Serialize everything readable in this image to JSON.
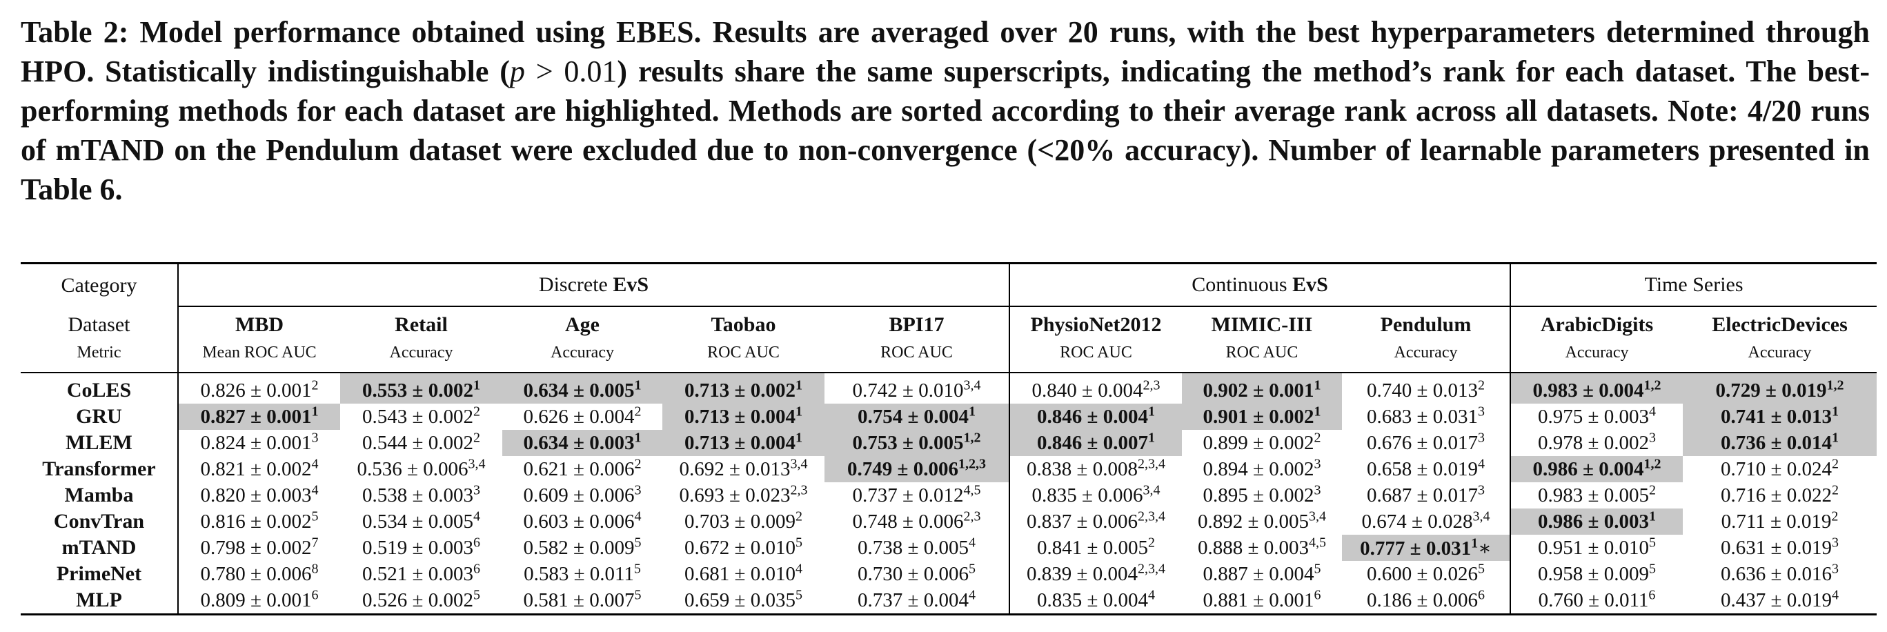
{
  "caption": {
    "part1": "Table 2: Model performance obtained using EBES. Results are averaged over 20 runs, with the best hyperparameters determined through HPO. Statistically indistinguishable (",
    "p_symbol": "p",
    "gt": " > ",
    "p_value": "0.01",
    "part2": ") results share the same superscripts, indicating the method’s rank for each dataset. The best-performing methods for each dataset are highlighted. Methods are sorted according to their average rank across all datasets. Note: 4/20 runs of mTAND on the Pendulum dataset were excluded due to non-convergence (<20% accuracy). Number of learnable parameters presented in Table 6."
  },
  "header": {
    "category_label": "Category",
    "dataset_label": "Dataset",
    "metric_label": "Metric",
    "groups": [
      {
        "prefix": "Discrete ",
        "bold": "EvS",
        "span": 5
      },
      {
        "prefix": "Continuous ",
        "bold": "EvS",
        "span": 3
      },
      {
        "prefix": "Time Series",
        "bold": "",
        "span": 2
      }
    ],
    "datasets": [
      "MBD",
      "Retail",
      "Age",
      "Taobao",
      "BPI17",
      "PhysioNet2012",
      "MIMIC-III",
      "Pendulum",
      "ArabicDigits",
      "ElectricDevices"
    ],
    "metrics": [
      "Mean ROC AUC",
      "Accuracy",
      "Accuracy",
      "ROC AUC",
      "ROC AUC",
      "ROC AUC",
      "ROC AUC",
      "Accuracy",
      "Accuracy",
      "Accuracy"
    ]
  },
  "rows": [
    {
      "method": "CoLES",
      "cells": [
        {
          "v": "0.826 ± 0.001",
          "s": "2",
          "b": false,
          "h": false
        },
        {
          "v": "0.553 ± 0.002",
          "s": "1",
          "b": true,
          "h": true
        },
        {
          "v": "0.634 ± 0.005",
          "s": "1",
          "b": true,
          "h": true
        },
        {
          "v": "0.713 ± 0.002",
          "s": "1",
          "b": true,
          "h": true
        },
        {
          "v": "0.742 ± 0.010",
          "s": "3,4",
          "b": false,
          "h": false
        },
        {
          "v": "0.840 ± 0.004",
          "s": "2,3",
          "b": false,
          "h": false
        },
        {
          "v": "0.902 ± 0.001",
          "s": "1",
          "b": true,
          "h": true
        },
        {
          "v": "0.740 ± 0.013",
          "s": "2",
          "b": false,
          "h": false
        },
        {
          "v": "0.983 ± 0.004",
          "s": "1,2",
          "b": true,
          "h": true
        },
        {
          "v": "0.729 ± 0.019",
          "s": "1,2",
          "b": true,
          "h": true
        }
      ]
    },
    {
      "method": "GRU",
      "cells": [
        {
          "v": "0.827 ± 0.001",
          "s": "1",
          "b": true,
          "h": true
        },
        {
          "v": "0.543 ± 0.002",
          "s": "2",
          "b": false,
          "h": false
        },
        {
          "v": "0.626 ± 0.004",
          "s": "2",
          "b": false,
          "h": false
        },
        {
          "v": "0.713 ± 0.004",
          "s": "1",
          "b": true,
          "h": true
        },
        {
          "v": "0.754 ± 0.004",
          "s": "1",
          "b": true,
          "h": true
        },
        {
          "v": "0.846 ± 0.004",
          "s": "1",
          "b": true,
          "h": true
        },
        {
          "v": "0.901 ± 0.002",
          "s": "1",
          "b": true,
          "h": true
        },
        {
          "v": "0.683 ± 0.031",
          "s": "3",
          "b": false,
          "h": false
        },
        {
          "v": "0.975 ± 0.003",
          "s": "4",
          "b": false,
          "h": false
        },
        {
          "v": "0.741 ± 0.013",
          "s": "1",
          "b": true,
          "h": true
        }
      ]
    },
    {
      "method": "MLEM",
      "cells": [
        {
          "v": "0.824 ± 0.001",
          "s": "3",
          "b": false,
          "h": false
        },
        {
          "v": "0.544 ± 0.002",
          "s": "2",
          "b": false,
          "h": false
        },
        {
          "v": "0.634 ± 0.003",
          "s": "1",
          "b": true,
          "h": true
        },
        {
          "v": "0.713 ± 0.004",
          "s": "1",
          "b": true,
          "h": true
        },
        {
          "v": "0.753 ± 0.005",
          "s": "1,2",
          "b": true,
          "h": true
        },
        {
          "v": "0.846 ± 0.007",
          "s": "1",
          "b": true,
          "h": true
        },
        {
          "v": "0.899 ± 0.002",
          "s": "2",
          "b": false,
          "h": false
        },
        {
          "v": "0.676 ± 0.017",
          "s": "3",
          "b": false,
          "h": false
        },
        {
          "v": "0.978 ± 0.002",
          "s": "3",
          "b": false,
          "h": false
        },
        {
          "v": "0.736 ± 0.014",
          "s": "1",
          "b": true,
          "h": true
        }
      ]
    },
    {
      "method": "Transformer",
      "cells": [
        {
          "v": "0.821 ± 0.002",
          "s": "4",
          "b": false,
          "h": false
        },
        {
          "v": "0.536 ± 0.006",
          "s": "3,4",
          "b": false,
          "h": false
        },
        {
          "v": "0.621 ± 0.006",
          "s": "2",
          "b": false,
          "h": false
        },
        {
          "v": "0.692 ± 0.013",
          "s": "3,4",
          "b": false,
          "h": false
        },
        {
          "v": "0.749 ± 0.006",
          "s": "1,2,3",
          "b": true,
          "h": true
        },
        {
          "v": "0.838 ± 0.008",
          "s": "2,3,4",
          "b": false,
          "h": false
        },
        {
          "v": "0.894 ± 0.002",
          "s": "3",
          "b": false,
          "h": false
        },
        {
          "v": "0.658 ± 0.019",
          "s": "4",
          "b": false,
          "h": false
        },
        {
          "v": "0.986 ± 0.004",
          "s": "1,2",
          "b": true,
          "h": true
        },
        {
          "v": "0.710 ± 0.024",
          "s": "2",
          "b": false,
          "h": false
        }
      ]
    },
    {
      "method": "Mamba",
      "cells": [
        {
          "v": "0.820 ± 0.003",
          "s": "4",
          "b": false,
          "h": false
        },
        {
          "v": "0.538 ± 0.003",
          "s": "3",
          "b": false,
          "h": false
        },
        {
          "v": "0.609 ± 0.006",
          "s": "3",
          "b": false,
          "h": false
        },
        {
          "v": "0.693 ± 0.023",
          "s": "2,3",
          "b": false,
          "h": false
        },
        {
          "v": "0.737 ± 0.012",
          "s": "4,5",
          "b": false,
          "h": false
        },
        {
          "v": "0.835 ± 0.006",
          "s": "3,4",
          "b": false,
          "h": false
        },
        {
          "v": "0.895 ± 0.002",
          "s": "3",
          "b": false,
          "h": false
        },
        {
          "v": "0.687 ± 0.017",
          "s": "3",
          "b": false,
          "h": false
        },
        {
          "v": "0.983 ± 0.005",
          "s": "2",
          "b": false,
          "h": false
        },
        {
          "v": "0.716 ± 0.022",
          "s": "2",
          "b": false,
          "h": false
        }
      ]
    },
    {
      "method": "ConvTran",
      "cells": [
        {
          "v": "0.816 ± 0.002",
          "s": "5",
          "b": false,
          "h": false
        },
        {
          "v": "0.534 ± 0.005",
          "s": "4",
          "b": false,
          "h": false
        },
        {
          "v": "0.603 ± 0.006",
          "s": "4",
          "b": false,
          "h": false
        },
        {
          "v": "0.703 ± 0.009",
          "s": "2",
          "b": false,
          "h": false
        },
        {
          "v": "0.748 ± 0.006",
          "s": "2,3",
          "b": false,
          "h": false
        },
        {
          "v": "0.837 ± 0.006",
          "s": "2,3,4",
          "b": false,
          "h": false
        },
        {
          "v": "0.892 ± 0.005",
          "s": "3,4",
          "b": false,
          "h": false
        },
        {
          "v": "0.674 ± 0.028",
          "s": "3,4",
          "b": false,
          "h": false
        },
        {
          "v": "0.986 ± 0.003",
          "s": "1",
          "b": true,
          "h": true
        },
        {
          "v": "0.711 ± 0.019",
          "s": "2",
          "b": false,
          "h": false
        }
      ]
    },
    {
      "method": "mTAND",
      "cells": [
        {
          "v": "0.798 ± 0.002",
          "s": "7",
          "b": false,
          "h": false
        },
        {
          "v": "0.519 ± 0.003",
          "s": "6",
          "b": false,
          "h": false
        },
        {
          "v": "0.582 ± 0.009",
          "s": "5",
          "b": false,
          "h": false
        },
        {
          "v": "0.672 ± 0.010",
          "s": "5",
          "b": false,
          "h": false
        },
        {
          "v": "0.738 ± 0.005",
          "s": "4",
          "b": false,
          "h": false
        },
        {
          "v": "0.841 ± 0.005",
          "s": "2",
          "b": false,
          "h": false
        },
        {
          "v": "0.888 ± 0.003",
          "s": "4,5",
          "b": false,
          "h": false
        },
        {
          "v": "0.777 ± 0.031",
          "s": "1",
          "b": true,
          "h": true,
          "mark": "∗"
        },
        {
          "v": "0.951 ± 0.010",
          "s": "5",
          "b": false,
          "h": false
        },
        {
          "v": "0.631 ± 0.019",
          "s": "3",
          "b": false,
          "h": false
        }
      ]
    },
    {
      "method": "PrimeNet",
      "cells": [
        {
          "v": "0.780 ± 0.006",
          "s": "8",
          "b": false,
          "h": false
        },
        {
          "v": "0.521 ± 0.003",
          "s": "6",
          "b": false,
          "h": false
        },
        {
          "v": "0.583 ± 0.011",
          "s": "5",
          "b": false,
          "h": false
        },
        {
          "v": "0.681 ± 0.010",
          "s": "4",
          "b": false,
          "h": false
        },
        {
          "v": "0.730 ± 0.006",
          "s": "5",
          "b": false,
          "h": false
        },
        {
          "v": "0.839 ± 0.004",
          "s": "2,3,4",
          "b": false,
          "h": false
        },
        {
          "v": "0.887 ± 0.004",
          "s": "5",
          "b": false,
          "h": false
        },
        {
          "v": "0.600 ± 0.026",
          "s": "5",
          "b": false,
          "h": false
        },
        {
          "v": "0.958 ± 0.009",
          "s": "5",
          "b": false,
          "h": false
        },
        {
          "v": "0.636 ± 0.016",
          "s": "3",
          "b": false,
          "h": false
        }
      ]
    },
    {
      "method": "MLP",
      "cells": [
        {
          "v": "0.809 ± 0.001",
          "s": "6",
          "b": false,
          "h": false
        },
        {
          "v": "0.526 ± 0.002",
          "s": "5",
          "b": false,
          "h": false
        },
        {
          "v": "0.581 ± 0.007",
          "s": "5",
          "b": false,
          "h": false
        },
        {
          "v": "0.659 ± 0.035",
          "s": "5",
          "b": false,
          "h": false
        },
        {
          "v": "0.737 ± 0.004",
          "s": "4",
          "b": false,
          "h": false
        },
        {
          "v": "0.835 ± 0.004",
          "s": "4",
          "b": false,
          "h": false
        },
        {
          "v": "0.881 ± 0.001",
          "s": "6",
          "b": false,
          "h": false
        },
        {
          "v": "0.186 ± 0.006",
          "s": "6",
          "b": false,
          "h": false
        },
        {
          "v": "0.760 ± 0.011",
          "s": "6",
          "b": false,
          "h": false
        },
        {
          "v": "0.437 ± 0.019",
          "s": "4",
          "b": false,
          "h": false
        }
      ]
    }
  ]
}
